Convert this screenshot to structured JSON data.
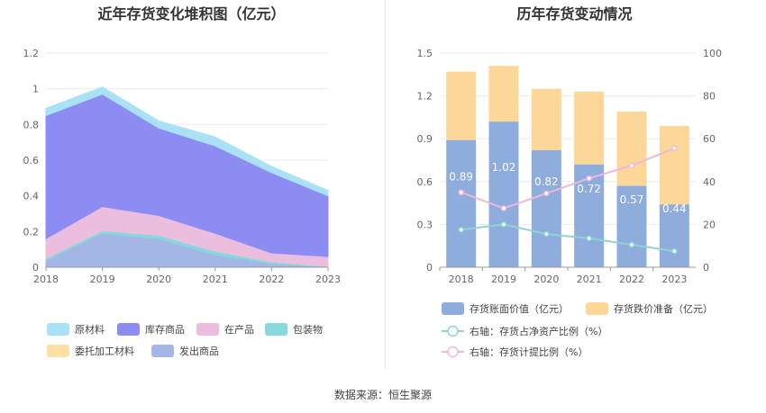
{
  "source": "数据来源：恒生聚源",
  "colors": {
    "raw": "#a9e1f7",
    "stock": "#8d8cf3",
    "wip": "#ebbedf",
    "pack": "#86d8dc",
    "entrust": "#fde0a5",
    "shipped": "#a3b6e6",
    "bar_book": "#8eacdc",
    "bar_reserve": "#fdd797",
    "line_ratio": "#8fd4d5",
    "line_provision": "#eeb8dd"
  },
  "chart_data": [
    {
      "type": "area",
      "title": "近年存货变化堆积图（亿元）",
      "x": [
        "2018",
        "2019",
        "2020",
        "2021",
        "2022",
        "2023"
      ],
      "ylim": [
        0,
        1.2
      ],
      "yticks": [
        "0",
        "0.2",
        "0.4",
        "0.6",
        "0.8",
        "1",
        "1.2"
      ],
      "stacked": true,
      "series": [
        {
          "name": "发出商品",
          "key": "shipped",
          "values": [
            0.04,
            0.19,
            0.16,
            0.07,
            0.02,
            0.0
          ]
        },
        {
          "name": "包装物",
          "key": "pack",
          "values": [
            0.01,
            0.015,
            0.02,
            0.02,
            0.01,
            0.005
          ]
        },
        {
          "name": "委托加工材料",
          "key": "entrust",
          "values": [
            0.0,
            0.0,
            0.0,
            0.0,
            0.0,
            0.0
          ]
        },
        {
          "name": "在产品",
          "key": "wip",
          "values": [
            0.11,
            0.135,
            0.11,
            0.1,
            0.05,
            0.055
          ]
        },
        {
          "name": "库存商品",
          "key": "stock",
          "values": [
            0.69,
            0.63,
            0.49,
            0.49,
            0.45,
            0.34
          ]
        },
        {
          "name": "原材料",
          "key": "raw",
          "values": [
            0.04,
            0.04,
            0.04,
            0.05,
            0.035,
            0.03
          ]
        }
      ],
      "legend": [
        "原材料",
        "库存商品",
        "在产品",
        "包装物",
        "委托加工材料",
        "发出商品"
      ],
      "legend_position": "bottom"
    },
    {
      "type": "bar",
      "title": "历年存货变动情况",
      "categories": [
        "2018",
        "2019",
        "2020",
        "2021",
        "2022",
        "2023"
      ],
      "ylim": [
        0,
        1.5
      ],
      "yticks": [
        "0",
        "0.3",
        "0.6",
        "0.9",
        "1.2",
        "1.5"
      ],
      "y2lim": [
        0,
        100
      ],
      "y2ticks": [
        "0",
        "20",
        "40",
        "60",
        "80",
        "100"
      ],
      "stacked": true,
      "series": [
        {
          "name": "存货账面价值（亿元）",
          "key": "bar_book",
          "axis": "left",
          "values": [
            0.89,
            1.02,
            0.82,
            0.72,
            0.57,
            0.44
          ],
          "labels": [
            "0.89",
            "1.02",
            "0.82",
            "0.72",
            "0.57",
            "0.44"
          ]
        },
        {
          "name": "存货跌价准备（亿元）",
          "key": "bar_reserve",
          "axis": "left",
          "values": [
            0.48,
            0.39,
            0.43,
            0.51,
            0.52,
            0.55
          ]
        },
        {
          "name": "右轴：存货占净资产比例（%）",
          "key": "line_ratio",
          "axis": "right",
          "line": true,
          "values": [
            17.5,
            20,
            15.5,
            13.5,
            10.5,
            7.5
          ]
        },
        {
          "name": "右轴：存货计提比例（%）",
          "key": "line_provision",
          "axis": "right",
          "line": true,
          "values": [
            35,
            27.5,
            34.5,
            41.5,
            47.5,
            55.5
          ]
        }
      ],
      "legend_position": "bottom"
    }
  ]
}
